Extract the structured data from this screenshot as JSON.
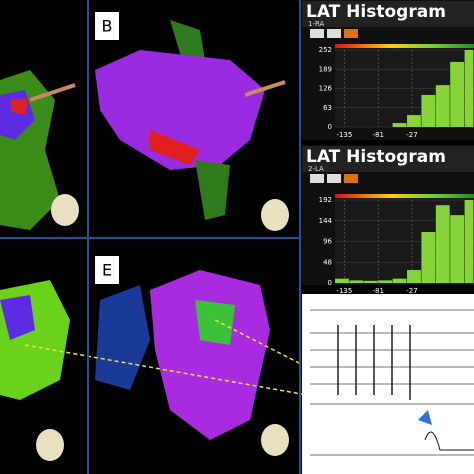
{
  "panels": [
    {
      "label": "B"
    },
    {
      "label": "E"
    }
  ],
  "histograms": [
    {
      "title": "LAT Histogram",
      "subtitle": "1-RA",
      "color": "#86d43a",
      "ylim": [
        0,
        252
      ],
      "yticks": [
        0,
        63,
        126,
        189,
        252
      ],
      "xlim": [
        -150,
        72
      ],
      "xticks": [
        -135,
        -81,
        -27
      ],
      "bins": [
        -58,
        -35,
        -12,
        11,
        34,
        57,
        72
      ],
      "counts": [
        13,
        39,
        105,
        137,
        213,
        252
      ]
    },
    {
      "title": "LAT Histogram",
      "subtitle": "2-LA",
      "color": "#86d43a",
      "ylim": [
        0,
        192
      ],
      "yticks": [
        0,
        48,
        96,
        144,
        192
      ],
      "xlim": [
        -150,
        72
      ],
      "xticks": [
        -135,
        -81,
        -27
      ],
      "bins": [
        -150,
        -127,
        -104,
        -81,
        -58,
        -35,
        -12,
        11,
        34,
        57,
        72
      ],
      "counts": [
        10,
        6,
        5,
        6,
        10,
        30,
        118,
        180,
        157,
        192
      ]
    }
  ]
}
